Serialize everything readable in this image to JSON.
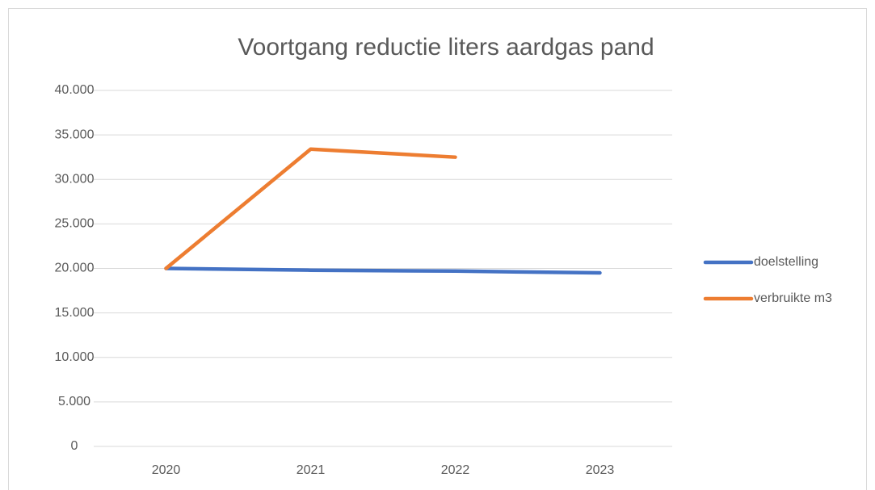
{
  "chart_data": {
    "type": "line",
    "title": "Voortgang reductie liters aardgas pand",
    "categories": [
      "2020",
      "2021",
      "2022",
      "2023"
    ],
    "series": [
      {
        "name": "doelstelling",
        "color": "#4472c4",
        "values": [
          20000,
          19800,
          19700,
          19500
        ]
      },
      {
        "name": "verbruikte m3",
        "color": "#ed7d31",
        "values": [
          20000,
          33400,
          32500,
          null
        ]
      }
    ],
    "ylim": [
      0,
      40000
    ],
    "yticks": [
      0,
      {
        "value": 5000,
        "label": "5.000"
      },
      {
        "value": 10000,
        "label": "10.000"
      },
      {
        "value": 15000,
        "label": "15.000"
      },
      {
        "value": 20000,
        "label": "20.000"
      },
      {
        "value": 25000,
        "label": "25.000"
      },
      {
        "value": 30000,
        "label": "30.000"
      },
      {
        "value": 35000,
        "label": "35.000"
      },
      {
        "value": 40000,
        "label": "40.000"
      }
    ],
    "grid": true,
    "legend": "right"
  }
}
